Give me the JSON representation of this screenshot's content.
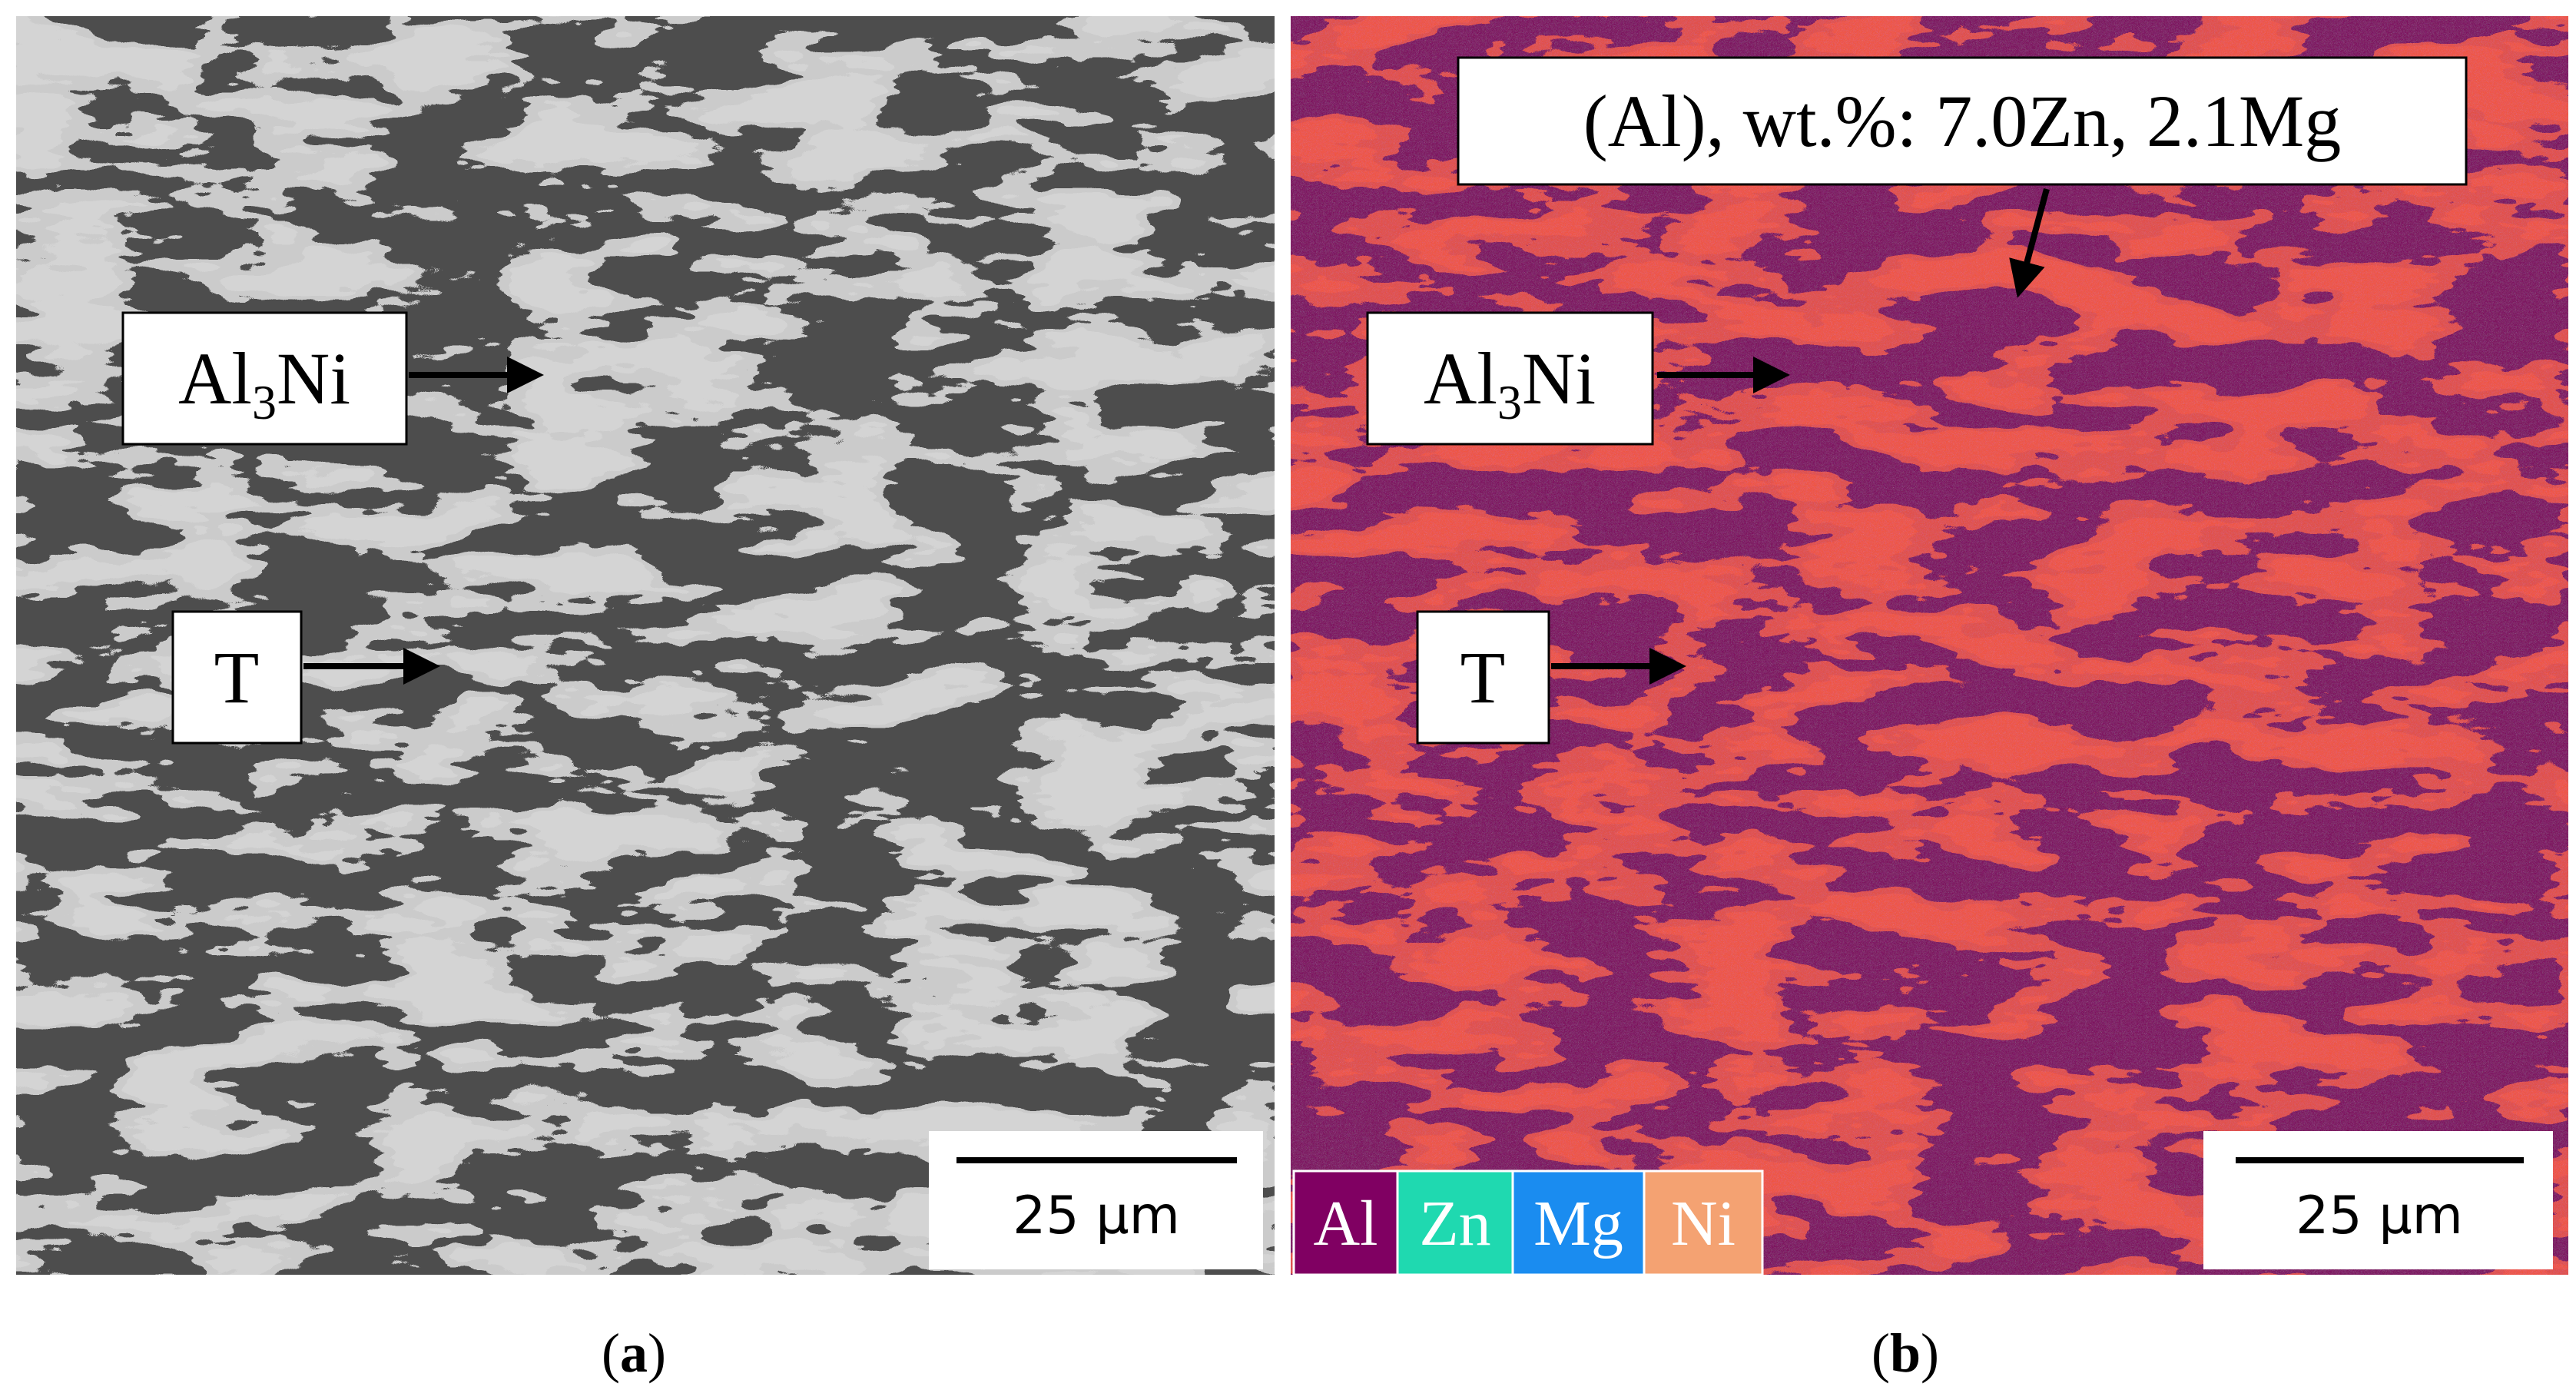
{
  "panels": [
    {
      "caption": [
        "(",
        "a",
        ")"
      ],
      "labels": [
        {
          "main": "Al",
          "sub": "3",
          "rest": "Ni"
        },
        {
          "main": "T"
        }
      ],
      "scale_bar": "25 µm"
    },
    {
      "caption": [
        "(",
        "b",
        ")"
      ],
      "labels": [
        {
          "main": "(Al), wt.%: 7.0Zn, 2.1Mg"
        },
        {
          "main": "Al",
          "sub": "3",
          "rest": "Ni"
        },
        {
          "main": "T"
        }
      ],
      "scale_bar": "25 µm",
      "legend": [
        {
          "name": "Al",
          "color": "#800062"
        },
        {
          "name": "Zn",
          "color": "#1fd9b0"
        },
        {
          "name": "Mg",
          "color": "#1a8cf0"
        },
        {
          "name": "Ni",
          "color": "#f4a272"
        }
      ]
    }
  ]
}
